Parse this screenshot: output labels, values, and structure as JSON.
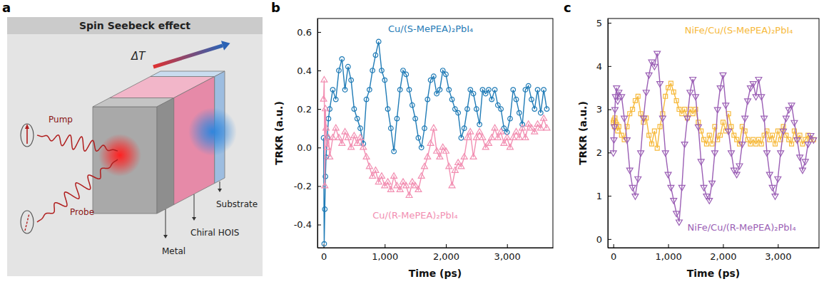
{
  "diagram": {
    "panel_label": "a",
    "title": "Spin Seebeck effect",
    "delta_t": "ΔT",
    "labels": {
      "pump": "Pump",
      "probe": "Probe",
      "metal": "Metal",
      "hois": "Chiral HOIS",
      "substrate": "Substrate"
    }
  },
  "chart_data": [
    {
      "panel_label": "b",
      "type": "line",
      "grid": false,
      "x_label": "Time (ps)",
      "y_label": "TRKR (a.u.)",
      "xlim": [
        -100,
        3750
      ],
      "xticks": [
        0,
        {
          "value": 1000,
          "label": "1,000"
        },
        {
          "value": 2000,
          "label": "2,000"
        },
        {
          "value": 3000,
          "label": "3,000"
        }
      ],
      "ylim": [
        -0.52,
        0.67
      ],
      "yticks": [
        -0.4,
        -0.2,
        {
          "value": 0,
          "label": "0.0"
        },
        0.2,
        0.4,
        0.6
      ],
      "x": [
        0,
        10,
        20,
        30,
        40,
        60,
        80,
        100,
        150,
        200,
        250,
        300,
        350,
        400,
        450,
        500,
        550,
        600,
        650,
        700,
        750,
        800,
        850,
        900,
        950,
        1000,
        1050,
        1100,
        1150,
        1200,
        1250,
        1300,
        1350,
        1400,
        1450,
        1500,
        1550,
        1600,
        1650,
        1700,
        1750,
        1800,
        1850,
        1900,
        1950,
        2000,
        2050,
        2100,
        2150,
        2200,
        2250,
        2300,
        2350,
        2400,
        2450,
        2500,
        2550,
        2600,
        2650,
        2700,
        2750,
        2800,
        2850,
        2900,
        2950,
        3000,
        3050,
        3100,
        3150,
        3200,
        3250,
        3300,
        3350,
        3400,
        3450,
        3500,
        3550,
        3600,
        3650
      ],
      "series": [
        {
          "name": "Cu/(S-MePEA)₂PbI₄",
          "color": "#1f7bb6",
          "marker": "circle",
          "values": [
            0.05,
            -0.5,
            -0.32,
            -0.15,
            -0.05,
            0.05,
            0.15,
            0.2,
            0.3,
            0.25,
            0.4,
            0.46,
            0.3,
            0.42,
            0.35,
            0.2,
            0.15,
            0.1,
            0.02,
            0.25,
            0.3,
            0.4,
            0.48,
            0.55,
            0.4,
            0.35,
            0.2,
            0.1,
            -0.02,
            0.15,
            0.3,
            0.4,
            0.38,
            0.3,
            0.22,
            0.15,
            0.05,
            0,
            0.1,
            0.25,
            0.35,
            0.37,
            0.28,
            0.3,
            0.4,
            0.38,
            0.3,
            0.25,
            0.2,
            0.18,
            0.05,
            0.1,
            0.2,
            0.3,
            0.28,
            0.2,
            0.12,
            0.3,
            0.28,
            0.3,
            0.25,
            0.3,
            0.22,
            0.2,
            0.1,
            0.08,
            0.15,
            0.3,
            0.25,
            0.18,
            0.12,
            0.3,
            0.32,
            0.25,
            0.2,
            0.3,
            0.18,
            0.3,
            0.2
          ]
        },
        {
          "name": "Cu/(R-MePEA)₂PbI₄",
          "color": "#f28fb2",
          "marker": "triangle",
          "values": [
            0.25,
            0.35,
            -0.2,
            0.2,
            0.1,
            0,
            0.05,
            -0.05,
            0.05,
            0.1,
            0.05,
            0.02,
            0.08,
            0.05,
            0,
            0.06,
            0.02,
            0.05,
            0,
            -0.05,
            -0.1,
            -0.15,
            -0.12,
            -0.18,
            -0.15,
            -0.2,
            -0.18,
            -0.22,
            -0.15,
            -0.2,
            -0.22,
            -0.18,
            -0.2,
            -0.25,
            -0.18,
            -0.2,
            -0.22,
            -0.15,
            -0.1,
            -0.05,
            0.02,
            0.1,
            -0.02,
            -0.05,
            0,
            -0.02,
            -0.1,
            -0.2,
            -0.12,
            -0.08,
            -0.1,
            -0.05,
            0.05,
            0.08,
            -0.05,
            0.05,
            0.08,
            0.05,
            0,
            0.02,
            0.05,
            0.1,
            0.05,
            0.08,
            0.02,
            0.05,
            0,
            0.05,
            0.08,
            0.05,
            0.1,
            0.05,
            0.12,
            0.1,
            0.08,
            0.12,
            0.1,
            0.15,
            0.1
          ]
        }
      ]
    },
    {
      "panel_label": "c",
      "type": "line",
      "grid": false,
      "x_label": "Time (ps)",
      "y_label": "TRKR (a.u.)",
      "xlim": [
        -100,
        3750
      ],
      "xticks": [
        0,
        {
          "value": 1000,
          "label": "1,000"
        },
        {
          "value": 2000,
          "label": "2,000"
        },
        {
          "value": 3000,
          "label": "3,000"
        }
      ],
      "ylim": [
        -0.2,
        5.1
      ],
      "yticks": [
        0,
        1,
        2,
        3,
        4,
        5
      ],
      "x": [
        0,
        10,
        20,
        30,
        40,
        60,
        80,
        100,
        150,
        200,
        250,
        300,
        350,
        400,
        450,
        500,
        550,
        600,
        650,
        700,
        750,
        800,
        850,
        900,
        950,
        1000,
        1050,
        1100,
        1150,
        1200,
        1250,
        1300,
        1350,
        1400,
        1450,
        1500,
        1550,
        1600,
        1650,
        1700,
        1750,
        1800,
        1850,
        1900,
        1950,
        2000,
        2050,
        2100,
        2150,
        2200,
        2250,
        2300,
        2350,
        2400,
        2450,
        2500,
        2550,
        2600,
        2650,
        2700,
        2750,
        2800,
        2850,
        2900,
        2950,
        3000,
        3050,
        3100,
        3150,
        3200,
        3250,
        3300,
        3350,
        3400,
        3450,
        3500,
        3550,
        3600,
        3650
      ],
      "series": [
        {
          "name": "NiFe/Cu/(S-MePEA)₂PbI₄",
          "color": "#f6b93b",
          "marker": "square",
          "values": [
            2.7,
            2.75,
            2.6,
            2.8,
            2.7,
            2.65,
            2.5,
            2.6,
            2.4,
            2.3,
            2.6,
            2.9,
            3.0,
            3.2,
            3.3,
            2.9,
            2.7,
            2.8,
            2.4,
            2.2,
            2.5,
            2.1,
            2.6,
            2.9,
            3.3,
            3.5,
            3.6,
            3.4,
            3.2,
            3.0,
            2.9,
            3.0,
            2.8,
            3.0,
            2.9,
            3.0,
            2.7,
            2.5,
            2.3,
            2.2,
            2.4,
            2.2,
            2.6,
            2.3,
            2.4,
            2.7,
            2.5,
            2.9,
            2.6,
            2.4,
            2.3,
            2.2,
            2.6,
            2.5,
            2.3,
            2.2,
            2.3,
            2.2,
            2.3,
            2.2,
            2.4,
            2.5,
            2.3,
            2.4,
            2.2,
            2.5,
            2.3,
            2.6,
            2.4,
            2.3,
            2.2,
            2.5,
            2.3,
            2.4,
            2.2,
            2.3,
            2.4,
            2.3,
            2.3
          ]
        },
        {
          "name": "NiFe/Cu/(R-MePEA)₂PbI₄",
          "color": "#9b5fb5",
          "marker": "triangle-down",
          "values": [
            2.0,
            2.3,
            2.6,
            3.0,
            3.3,
            3.5,
            3.2,
            3.4,
            3.3,
            2.8,
            2.3,
            1.6,
            1.2,
            1.0,
            1.4,
            2.0,
            2.8,
            3.4,
            3.8,
            4.1,
            4.0,
            4.3,
            3.6,
            2.8,
            2.0,
            1.5,
            1.2,
            0.9,
            0.6,
            0.4,
            1.2,
            2.2,
            2.8,
            3.4,
            3.7,
            3.3,
            2.6,
            1.8,
            1.2,
            1.0,
            0.9,
            1.3,
            2.0,
            3.0,
            3.5,
            3.8,
            3.1,
            2.5,
            2.0,
            1.6,
            1.5,
            1.7,
            2.2,
            2.8,
            3.2,
            3.5,
            3.6,
            3.3,
            3.7,
            3.3,
            2.8,
            2.0,
            1.5,
            1.2,
            1.0,
            1.4,
            2.0,
            2.5,
            2.8,
            3.0,
            3.1,
            2.7,
            2.3,
            1.9,
            1.6,
            1.8,
            2.2,
            2.4,
            2.3
          ]
        }
      ]
    }
  ]
}
